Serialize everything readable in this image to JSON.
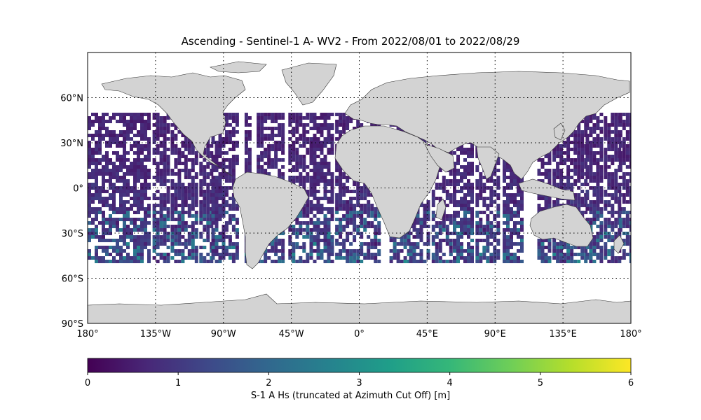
{
  "title": "Ascending - Sentinel-1 A- WV2 - From 2022/08/01 to 2022/08/29",
  "map": {
    "lon_ticks": [
      {
        "value": -180,
        "label": "180°"
      },
      {
        "value": -135,
        "label": "135°W"
      },
      {
        "value": -90,
        "label": "90°W"
      },
      {
        "value": -45,
        "label": "45°W"
      },
      {
        "value": 0,
        "label": "0°"
      },
      {
        "value": 45,
        "label": "45°E"
      },
      {
        "value": 90,
        "label": "90°E"
      },
      {
        "value": 135,
        "label": "135°E"
      },
      {
        "value": 180,
        "label": "180°"
      }
    ],
    "lat_ticks": [
      {
        "value": 60,
        "label": "60°N"
      },
      {
        "value": 30,
        "label": "30°N"
      },
      {
        "value": 0,
        "label": "0°"
      },
      {
        "value": -30,
        "label": "30°S"
      },
      {
        "value": -60,
        "label": "60°S"
      },
      {
        "value": -90,
        "label": "90°S"
      }
    ],
    "lon_range": [
      -180,
      180
    ],
    "lat_range": [
      -90,
      90
    ],
    "gridlines": true,
    "land_color": "#d3d3d3",
    "coverage_lat_range": [
      -50,
      50
    ]
  },
  "colorbar": {
    "label": "S-1 A Hs (truncated at Azimuth Cut Off) [m]",
    "range": [
      0,
      6
    ],
    "ticks": [
      "0",
      "1",
      "2",
      "3",
      "4",
      "5",
      "6"
    ],
    "colormap": "viridis",
    "colors": [
      "#440154",
      "#482878",
      "#3e4989",
      "#31688e",
      "#26828e",
      "#1f9e89",
      "#35b779",
      "#6ece58",
      "#b5de2b",
      "#fde725"
    ]
  }
}
